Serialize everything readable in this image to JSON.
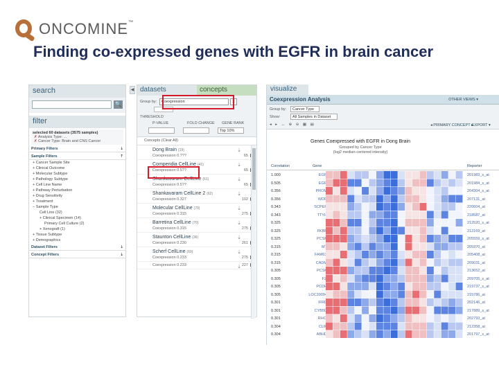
{
  "header": {
    "logo_text": "ONCOMINE",
    "logo_tm": "™",
    "slide_title": "Finding co-expressed genes with EGFR in brain cancer"
  },
  "left_panel": {
    "search_title": "search",
    "search_button": "🔍",
    "filter_title": "filter",
    "selected_summary": "selected 60 datasets (3575 samples)",
    "active_filters": [
      "Analysis Type: ...",
      "Cancer Type: Brain and CNS Cancer"
    ],
    "sections": {
      "primary_filters": "Primary Filters",
      "sample_filters": "Sample Filters",
      "dataset_filters": "Dataset Filters",
      "concept_filters": "Concept Filters"
    },
    "sample_filter_items": [
      "Cancer Sample Site",
      "Clinical Outcome",
      "Molecular Subtype",
      "Pathology Subtype",
      "Cell Line Name",
      "Pathway Perturbation",
      "Drug Sensitivity",
      "Treatment",
      "Sample Type"
    ],
    "sample_type_items": [
      "Cell Line (32)",
      "Clinical Specimen (14)",
      "Primary Cell Culture (2)",
      "Xenograft (1)"
    ],
    "tail_items": [
      "Tissue Subtype",
      "Demographics"
    ]
  },
  "middle_panel": {
    "tab_datasets": "datasets",
    "tab_concepts": "concepts",
    "group_by_label": "Group by:",
    "group_by_value": "Coexpression",
    "clear_symbol": "✕",
    "thresholds_label": "THRESHOLD",
    "thr_labels": [
      "P-VALUE",
      "FOLD CHANGE",
      "GENE RANK"
    ],
    "thr_values": [
      "",
      "",
      "Top 10%"
    ],
    "concepts_header": "Concepts (Clear All)",
    "concepts": [
      {
        "name": "Dong Brain",
        "count": "(19)",
        "exp": "Coexpression 0.???",
        "num": "65"
      },
      {
        "name": "Compendia CellLine",
        "count": "(41)",
        "exp": "Coexpression 0.5??",
        "num": "65"
      },
      {
        "name": "Shankavaram CellLine",
        "count": "(61)",
        "exp": "Coexpression 0.5??",
        "num": "65"
      },
      {
        "name": "Shankavaram CellLine 2",
        "count": "(62)",
        "exp": "Coexpression 0.327",
        "num": "102"
      },
      {
        "name": "Molecular CellLine",
        "count": "(70)",
        "exp": "Coexpression 0.315",
        "num": "275"
      },
      {
        "name": "Barretina CellLine",
        "count": "(70)",
        "exp": "Coexpression 0.315",
        "num": "275"
      },
      {
        "name": "Staunton CellLine",
        "count": "(36)",
        "exp": "Coexpression 0.230",
        "num": "261"
      },
      {
        "name": "Scherf CellLine",
        "count": "(60)",
        "exp": "Coexpression 0.233",
        "num": "275"
      },
      {
        "name": "",
        "count": "",
        "exp": "Coexpression 0.233",
        "num": "227"
      }
    ]
  },
  "right_panel": {
    "tab": "visualize",
    "title": "Coexpression Analysis",
    "other_views": "OTHER VIEWS",
    "group_by_label": "Group by:",
    "group_by_value": "Cancer Type",
    "show_label": "Show:",
    "show_value": "All Samples in Dataset",
    "primary_concept": "PRIMARY CONCEPT",
    "export": "EXPORT",
    "chart_title": "Genes Coexpressed with EGFR in Dong Brain",
    "chart_sub1": "Grouped by Cancer Type",
    "chart_sub2": "(log2 median-centered intensity)",
    "col_correlation": "Correlation",
    "col_gene": "Gene",
    "col_reporter": "Reporter",
    "page_number": "1",
    "rows": [
      {
        "corr": "1.000",
        "gene": "EGFR",
        "rep": "201983_s_at"
      },
      {
        "corr": "0.505",
        "gene": "EGFR",
        "rep": "201984_s_at"
      },
      {
        "corr": "0.356",
        "gene": "PROM1",
        "rep": "204304_s_at"
      },
      {
        "corr": "0.356",
        "gene": "WDR1",
        "rep": "207131_at"
      },
      {
        "corr": "0.343",
        "gene": "SCPEP1",
        "rep": "220604_at"
      },
      {
        "corr": "0.343",
        "gene": "TTYH3",
        "rep": "218587_at"
      },
      {
        "corr": "0.325",
        "gene": "--",
        "rep": "212520_s_at"
      },
      {
        "corr": "0.325",
        "gene": "FKBP9",
        "rep": "212169_at"
      },
      {
        "corr": "0.325",
        "gene": "PCSK5",
        "rep": "205559_s_at"
      },
      {
        "corr": "0.315",
        "gene": "MT3",
        "rep": "205970_at"
      },
      {
        "corr": "0.315",
        "gene": "FAM63B",
        "rep": "205408_at"
      },
      {
        "corr": "0.315",
        "gene": "CADM1",
        "rep": "209031_at"
      },
      {
        "corr": "0.305",
        "gene": "PCSK5",
        "rep": "213652_at"
      },
      {
        "corr": "0.305",
        "gene": "F2R",
        "rep": "209705_s_at"
      },
      {
        "corr": "0.305",
        "gene": "PCDH9",
        "rep": "219737_s_at"
      },
      {
        "corr": "0.305",
        "gene": "LOC390940",
        "rep": "215786_at"
      },
      {
        "corr": "0.301",
        "gene": "IFRD1",
        "rep": "202146_at"
      },
      {
        "corr": "0.301",
        "gene": "CYB5D1",
        "rep": "217889_s_at"
      },
      {
        "corr": "0.301",
        "gene": "RHOD",
        "rep": "202793_at"
      },
      {
        "corr": "0.304",
        "gene": "CLIP3",
        "rep": "212358_at"
      },
      {
        "corr": "0.304",
        "gene": "ABHD1",
        "rep": "201797_s_at"
      }
    ]
  },
  "colors": {
    "logo": "#b8703a",
    "title": "#1f2d57",
    "highlight": "#d7182a",
    "heat_high": "#e86e74",
    "heat_low": "#3b6ed9"
  }
}
